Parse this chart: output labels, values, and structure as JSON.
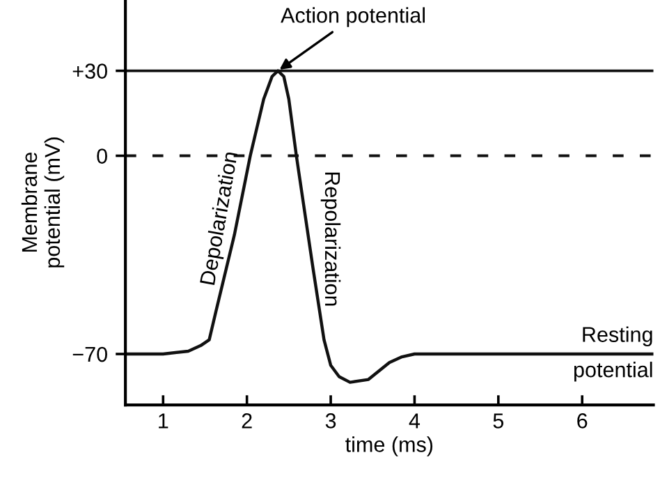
{
  "chart_data": {
    "type": "line",
    "xlabel": "time (ms)",
    "ylabel": "Membrane\npotential (mV)",
    "x": [
      0.57,
      1.0,
      1.3,
      1.45,
      1.55,
      1.63,
      1.85,
      2.04,
      2.2,
      2.3,
      2.37,
      2.44,
      2.5,
      2.59,
      2.79,
      2.92,
      3.0,
      3.1,
      3.23,
      3.45,
      3.7,
      3.85,
      4.0,
      6.85
    ],
    "series": [
      {
        "color": "#111111",
        "values": [
          -70,
          -70,
          -69,
          -67,
          -65,
          -55,
          -28,
          0,
          20,
          28,
          30,
          28,
          20,
          0,
          -40,
          -65,
          -74,
          -78,
          -80,
          -79,
          -73,
          -71,
          -70,
          -70
        ]
      }
    ],
    "xlim": [
      0.55,
      6.85
    ],
    "ylim": [
      -88,
      55
    ],
    "xticks": [
      1,
      2,
      3,
      4,
      5,
      6
    ],
    "yticks": [
      {
        "value": 30,
        "label": "+30"
      },
      0,
      {
        "value": -70,
        "label": "−70"
      }
    ],
    "ref_lines": [
      {
        "axis": "y",
        "value": 30,
        "line_style": "solid",
        "color": "#111111"
      },
      {
        "axis": "y",
        "value": 0,
        "line_style": "dashed",
        "color": "#111111"
      }
    ],
    "annotations": [
      {
        "text": "Action potential",
        "x": 2.37,
        "y": 30
      },
      "Depolarization",
      "Repolarization",
      {
        "text": "Resting\npotential",
        "x": 6.85,
        "y": -70
      }
    ],
    "grid": false,
    "marker": "none",
    "line_style": "solid"
  }
}
